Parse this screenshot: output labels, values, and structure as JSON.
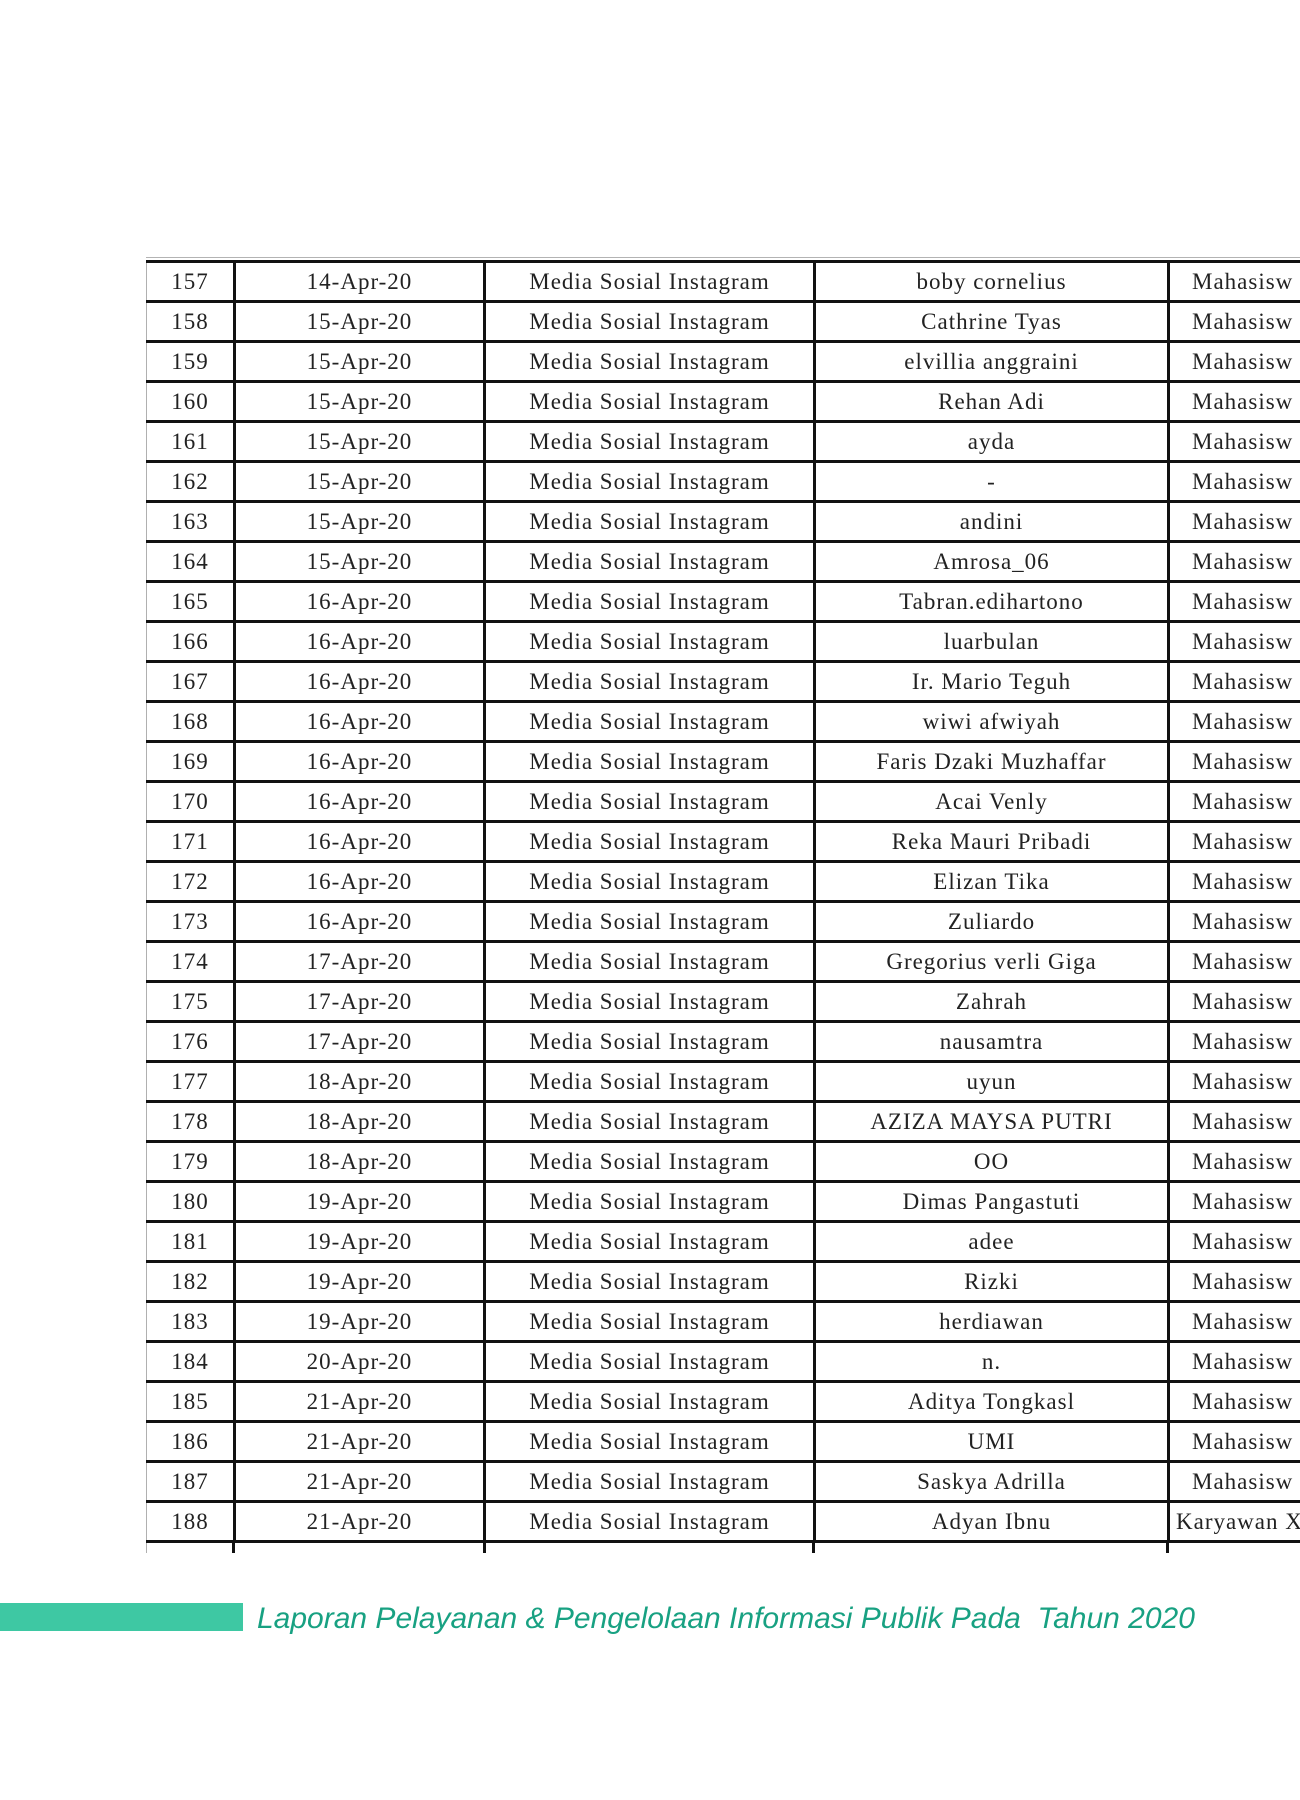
{
  "table": {
    "column_keys": [
      "no",
      "date",
      "media",
      "name",
      "status"
    ],
    "rows": [
      {
        "no": "157",
        "date": "14-Apr-20",
        "media": "Media Sosial Instagram",
        "name": "boby cornelius",
        "status": "Mahasisw"
      },
      {
        "no": "158",
        "date": "15-Apr-20",
        "media": "Media Sosial Instagram",
        "name": "Cathrine Tyas",
        "status": "Mahasisw"
      },
      {
        "no": "159",
        "date": "15-Apr-20",
        "media": "Media Sosial Instagram",
        "name": "elvillia anggraini",
        "status": "Mahasisw"
      },
      {
        "no": "160",
        "date": "15-Apr-20",
        "media": "Media Sosial Instagram",
        "name": "Rehan Adi",
        "status": "Mahasisw"
      },
      {
        "no": "161",
        "date": "15-Apr-20",
        "media": "Media Sosial Instagram",
        "name": "ayda",
        "status": "Mahasisw"
      },
      {
        "no": "162",
        "date": "15-Apr-20",
        "media": "Media Sosial Instagram",
        "name": "-",
        "status": "Mahasisw"
      },
      {
        "no": "163",
        "date": "15-Apr-20",
        "media": "Media Sosial Instagram",
        "name": "andini",
        "status": "Mahasisw"
      },
      {
        "no": "164",
        "date": "15-Apr-20",
        "media": "Media Sosial Instagram",
        "name": "Amrosa_06",
        "status": "Mahasisw"
      },
      {
        "no": "165",
        "date": "16-Apr-20",
        "media": "Media Sosial Instagram",
        "name": "Tabran.edihartono",
        "status": "Mahasisw"
      },
      {
        "no": "166",
        "date": "16-Apr-20",
        "media": "Media Sosial Instagram",
        "name": "luarbulan",
        "status": "Mahasisw"
      },
      {
        "no": "167",
        "date": "16-Apr-20",
        "media": "Media Sosial Instagram",
        "name": "Ir. Mario Teguh",
        "status": "Mahasisw"
      },
      {
        "no": "168",
        "date": "16-Apr-20",
        "media": "Media Sosial Instagram",
        "name": "wiwi afwiyah",
        "status": "Mahasisw"
      },
      {
        "no": "169",
        "date": "16-Apr-20",
        "media": "Media Sosial Instagram",
        "name": "Faris Dzaki Muzhaffar",
        "status": "Mahasisw"
      },
      {
        "no": "170",
        "date": "16-Apr-20",
        "media": "Media Sosial Instagram",
        "name": "Acai Venly",
        "status": "Mahasisw"
      },
      {
        "no": "171",
        "date": "16-Apr-20",
        "media": "Media Sosial Instagram",
        "name": "Reka Mauri Pribadi",
        "status": "Mahasisw"
      },
      {
        "no": "172",
        "date": "16-Apr-20",
        "media": "Media Sosial Instagram",
        "name": "Elizan Tika",
        "status": "Mahasisw"
      },
      {
        "no": "173",
        "date": "16-Apr-20",
        "media": "Media Sosial Instagram",
        "name": "Zuliardo",
        "status": "Mahasisw"
      },
      {
        "no": "174",
        "date": "17-Apr-20",
        "media": "Media Sosial Instagram",
        "name": "Gregorius verli Giga",
        "status": "Mahasisw"
      },
      {
        "no": "175",
        "date": "17-Apr-20",
        "media": "Media Sosial Instagram",
        "name": "Zahrah",
        "status": "Mahasisw"
      },
      {
        "no": "176",
        "date": "17-Apr-20",
        "media": "Media Sosial Instagram",
        "name": "nausamtra",
        "status": "Mahasisw"
      },
      {
        "no": "177",
        "date": "18-Apr-20",
        "media": "Media Sosial Instagram",
        "name": "uyun",
        "status": "Mahasisw"
      },
      {
        "no": "178",
        "date": "18-Apr-20",
        "media": "Media Sosial Instagram",
        "name": "AZIZA MAYSA PUTRI",
        "status": "Mahasisw"
      },
      {
        "no": "179",
        "date": "18-Apr-20",
        "media": "Media Sosial Instagram",
        "name": "OO",
        "status": "Mahasisw"
      },
      {
        "no": "180",
        "date": "19-Apr-20",
        "media": "Media Sosial Instagram",
        "name": "Dimas Pangastuti",
        "status": "Mahasisw"
      },
      {
        "no": "181",
        "date": "19-Apr-20",
        "media": "Media Sosial Instagram",
        "name": "adee",
        "status": "Mahasisw"
      },
      {
        "no": "182",
        "date": "19-Apr-20",
        "media": "Media Sosial Instagram",
        "name": "Rizki",
        "status": "Mahasisw"
      },
      {
        "no": "183",
        "date": "19-Apr-20",
        "media": "Media Sosial Instagram",
        "name": "herdiawan",
        "status": "Mahasisw"
      },
      {
        "no": "184",
        "date": "20-Apr-20",
        "media": "Media Sosial Instagram",
        "name": "n.",
        "status": "Mahasisw"
      },
      {
        "no": "185",
        "date": "21-Apr-20",
        "media": "Media Sosial Instagram",
        "name": "Aditya Tongkasl",
        "status": "Mahasisw"
      },
      {
        "no": "186",
        "date": "21-Apr-20",
        "media": "Media Sosial Instagram",
        "name": "UMI",
        "status": "Mahasisw"
      },
      {
        "no": "187",
        "date": "21-Apr-20",
        "media": "Media Sosial Instagram",
        "name": "Saskya Adrilla",
        "status": "Mahasisw"
      },
      {
        "no": "188",
        "date": "21-Apr-20",
        "media": "Media Sosial Instagram",
        "name": "Adyan Ibnu",
        "status": "Karyawan X"
      }
    ]
  },
  "footer": {
    "text": "Laporan Pelayanan & Pengelolaan Informasi Publik Pada  Tahun 2020"
  },
  "colors": {
    "footer_bar": "#3ec8a3",
    "footer_text": "#18a182",
    "table_border": "#111111"
  }
}
